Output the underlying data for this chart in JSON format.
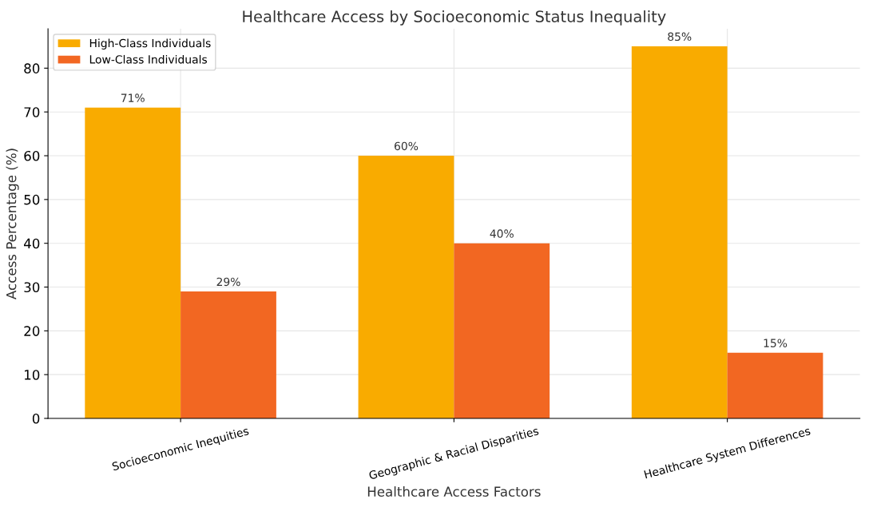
{
  "chart_data": {
    "type": "bar",
    "title": "Healthcare Access by Socioeconomic Status Inequality",
    "xlabel": "Healthcare Access Factors",
    "ylabel": "Access Percentage (%)",
    "categories": [
      "Socioeconomic Inequities",
      "Geographic & Racial Disparities",
      "Healthcare System Differences"
    ],
    "series": [
      {
        "name": "High-Class Individuals",
        "color": "#f9ab00",
        "values": [
          71,
          60,
          85
        ],
        "value_labels": [
          "71%",
          "60%",
          "85%"
        ]
      },
      {
        "name": "Low-Class Individuals",
        "color": "#f26722",
        "values": [
          29,
          40,
          15
        ],
        "value_labels": [
          "29%",
          "40%",
          "15%"
        ]
      }
    ],
    "ylim": [
      0,
      89
    ],
    "yticks": [
      0,
      10,
      20,
      30,
      40,
      50,
      60,
      70,
      80
    ],
    "grid": true,
    "legend": "top left"
  }
}
